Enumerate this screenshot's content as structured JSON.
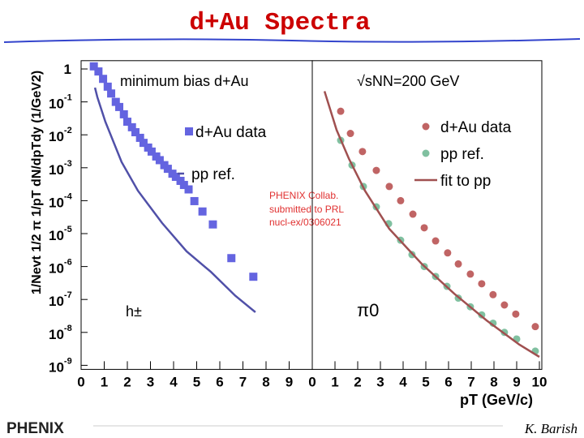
{
  "slide": {
    "title": "d+Au Spectra",
    "y_label": "1/Nevt 1/2 π 1/pT dN/dpTdy (1/GeV2)",
    "x_label": "pT (GeV/c)",
    "footer_left": "PHENIX",
    "footer_right": "K. Barish"
  },
  "chart_data": [
    {
      "type": "scatter",
      "log_y": true,
      "xlim": [
        0,
        10
      ],
      "xticks": [
        0,
        1,
        2,
        3,
        4,
        5,
        6,
        7,
        8,
        9
      ],
      "ylim": [
        1e-09,
        2
      ],
      "yticks": [
        1,
        {
          "value": 0.1,
          "label": "10",
          "exponent": "-1"
        },
        {
          "value": 0.01,
          "label": "10",
          "exponent": "-2"
        },
        {
          "value": 0.001,
          "label": "10",
          "exponent": "-3"
        },
        {
          "value": 0.0001,
          "label": "10",
          "exponent": "-4"
        },
        {
          "value": 1e-05,
          "label": "10",
          "exponent": "-5"
        },
        {
          "value": 1e-06,
          "label": "10",
          "exponent": "-6"
        },
        {
          "value": 1e-07,
          "label": "10",
          "exponent": "-7"
        },
        {
          "value": 1e-08,
          "label": "10",
          "exponent": "-8"
        },
        {
          "value": 1e-09,
          "label": "10",
          "exponent": "-9"
        }
      ],
      "annotations": [
        "minimum bias d+Au",
        "h±",
        "PHENIX Collab.",
        "submitted to PRL",
        "nucl-ex/0306021"
      ],
      "series": [
        {
          "name": "d+Au data",
          "color": "#6464e0",
          "marker": "square",
          "x": [
            0.55,
            0.75,
            0.95,
            1.15,
            1.3,
            1.5,
            1.65,
            1.85,
            2.0,
            2.2,
            2.35,
            2.55,
            2.7,
            2.9,
            3.05,
            3.25,
            3.4,
            3.6,
            3.75,
            3.95,
            4.1,
            4.3,
            4.45,
            4.65,
            4.9,
            5.25,
            5.7,
            6.5,
            7.45
          ],
          "values": [
            1.2,
            0.84,
            0.5,
            0.29,
            0.18,
            0.1,
            0.07,
            0.042,
            0.025,
            0.017,
            0.012,
            0.0081,
            0.0057,
            0.0041,
            0.0031,
            0.0022,
            0.0017,
            0.0012,
            0.00093,
            0.00066,
            0.00053,
            0.0004,
            0.0003,
            0.00022,
            9.7e-05,
            4.7e-05,
            1.9e-05,
            1.8e-06,
            4.9e-07
          ]
        },
        {
          "name": "pp ref.",
          "color": "#5050a8",
          "marker": "line",
          "x": [
            0.6,
            0.7,
            1.05,
            1.75,
            2.46,
            3.5,
            4.56,
            5.61,
            6.67,
            7.54
          ],
          "values": [
            0.27,
            0.14,
            0.025,
            0.0015,
            0.0002,
            2.1e-05,
            2.9e-06,
            6.9e-07,
            1.3e-07,
            4.1e-08
          ]
        }
      ]
    },
    {
      "type": "scatter",
      "log_y": true,
      "xlim": [
        0,
        10
      ],
      "xticks": [
        0,
        1,
        2,
        3,
        4,
        5,
        6,
        7,
        8,
        9,
        10
      ],
      "ylim": [
        1e-09,
        2
      ],
      "annotations": [
        "√sNN=200 GeV",
        "π0"
      ],
      "series": [
        {
          "name": "d+Au data",
          "color": "#c06464",
          "marker": "circle",
          "x": [
            1.25,
            1.68,
            2.21,
            2.82,
            3.39,
            3.89,
            4.43,
            4.93,
            5.43,
            5.96,
            6.43,
            6.96,
            7.46,
            7.96,
            8.46,
            8.96,
            9.82
          ],
          "values": [
            0.052,
            0.011,
            0.0031,
            0.00083,
            0.00027,
            0.0001,
            3.9e-05,
            1.5e-05,
            6e-06,
            2.6e-06,
            1.2e-06,
            5.9e-07,
            3e-07,
            1.4e-07,
            6.8e-08,
            3.6e-08,
            1.5e-08
          ]
        },
        {
          "name": "pp ref.",
          "color": "#80c0a0",
          "marker": "circle",
          "x": [
            1.25,
            1.75,
            2.25,
            2.82,
            3.36,
            3.89,
            4.39,
            4.93,
            5.43,
            5.93,
            6.43,
            6.96,
            7.46,
            7.96,
            8.46,
            9.0,
            9.82
          ],
          "values": [
            0.0068,
            0.0012,
            0.00027,
            6.5e-05,
            2e-05,
            6.3e-06,
            2.3e-06,
            1e-06,
            5e-07,
            2.5e-07,
            1.1e-07,
            6e-08,
            3.4e-08,
            1.9e-08,
            1e-08,
            6.3e-09,
            2.7e-09
          ]
        },
        {
          "name": "fit to pp",
          "color": "#a05050",
          "marker": "line",
          "x": [
            0.54,
            1.07,
            1.61,
            2.32,
            3.39,
            4.82,
            6.25,
            7.68,
            9.11,
            10.0
          ],
          "values": [
            0.21,
            0.014,
            0.0019,
            0.0002,
            1.4e-05,
            1.2e-06,
            1.5e-07,
            2.3e-08,
            4.3e-09,
            1.8e-09
          ]
        }
      ]
    }
  ]
}
